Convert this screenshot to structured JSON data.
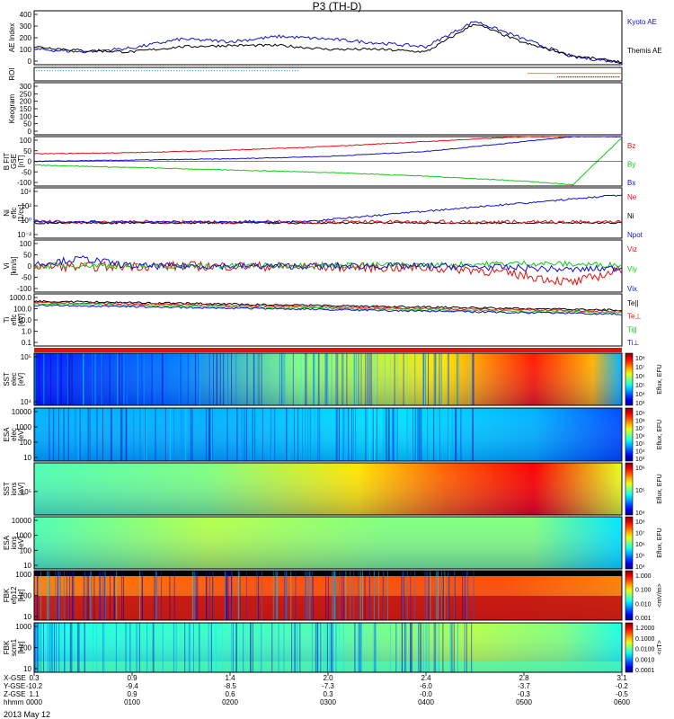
{
  "title": "P3 (TH-D)",
  "date_label": "2013 May 12",
  "colors": {
    "kyoto": "#1010c8",
    "themis": "#000000",
    "red": "#e01010",
    "green": "#10c810",
    "blue": "#1010d0",
    "black": "#000000"
  },
  "panels": [
    {
      "id": "ae",
      "ylabel": [
        "AE Index"
      ],
      "ticks": [
        "400",
        "300",
        "200",
        "100",
        "0"
      ],
      "legend": [
        {
          "text": "Kyoto AE",
          "color": "#1010c8"
        },
        {
          "text": "Themis AE",
          "color": "#000000"
        }
      ]
    },
    {
      "id": "roi",
      "ylabel": [
        "ROI"
      ],
      "ticks": [],
      "legend": []
    },
    {
      "id": "keogram",
      "ylabel": [
        "Keogram"
      ],
      "ticks": [
        "300",
        "250",
        "200",
        "150",
        "100",
        "50",
        "0"
      ],
      "legend": []
    },
    {
      "id": "bfit",
      "ylabel": [
        "B FIT",
        "GSE",
        "[nT]"
      ],
      "ticks": [
        "100",
        "50",
        "0",
        "-50",
        "-100"
      ],
      "legend": [
        {
          "text": "Bz",
          "color": "#e01010"
        },
        {
          "text": "By",
          "color": "#10c810"
        },
        {
          "text": "Bx",
          "color": "#1010d0"
        }
      ]
    },
    {
      "id": "ni",
      "ylabel": [
        "Ni",
        "eflc",
        "[1/cc]"
      ],
      "ticks": [
        "10⁴",
        "10²",
        "10⁰",
        "10⁻²"
      ],
      "legend": [
        {
          "text": "Ne",
          "color": "#e01010"
        },
        {
          "text": "Ni",
          "color": "#000000"
        },
        {
          "text": "Npot",
          "color": "#1010d0"
        }
      ]
    },
    {
      "id": "vi",
      "ylabel": [
        "Vi",
        "[km/s]"
      ],
      "ticks": [
        "100",
        "50",
        "0",
        "-50",
        "-100"
      ],
      "legend": [
        {
          "text": "Viz",
          "color": "#e01010"
        },
        {
          "text": "Viy",
          "color": "#10c810"
        },
        {
          "text": "Vix",
          "color": "#1010d0"
        }
      ]
    },
    {
      "id": "ti",
      "ylabel": [
        "Ti",
        "eflc",
        "[eV]"
      ],
      "ticks": [
        "1000.0",
        "100.0",
        "10.0",
        "1.0",
        "0.1"
      ],
      "legend": [
        {
          "text": "Te||",
          "color": "#000000"
        },
        {
          "text": "Te⊥",
          "color": "#e01010"
        },
        {
          "text": "Ti||",
          "color": "#10c810"
        },
        {
          "text": "Ti⊥",
          "color": "#1010d0"
        }
      ]
    },
    {
      "id": "sste",
      "ylabel": [
        "SST",
        "elec",
        "[eV]"
      ],
      "ticks": [
        "10⁵",
        "10⁴"
      ],
      "cbar": "Eflux, EFU",
      "cticks": [
        "10⁸",
        "10⁷",
        "10⁶",
        "10⁵",
        "10⁴",
        "10³"
      ]
    },
    {
      "id": "esae",
      "ylabel": [
        "ESA",
        "elec",
        "[eV]"
      ],
      "ticks": [
        "10000",
        "1000",
        "100",
        "10"
      ],
      "cbar": "Eflux, EFU",
      "cticks": [
        "10⁹",
        "10⁸",
        "10⁷",
        "10⁶",
        "10⁵",
        "10⁴",
        "10³"
      ]
    },
    {
      "id": "ssti",
      "ylabel": [
        "SST",
        "ions",
        "[eV]"
      ],
      "ticks": [
        "10⁵"
      ],
      "cbar": "Eflux, EFU",
      "cticks": [
        "10⁶",
        "10⁵",
        "10⁴"
      ]
    },
    {
      "id": "esai",
      "ylabel": [
        "ESA",
        "ions",
        "[eV]"
      ],
      "ticks": [
        "10000",
        "1000",
        "100",
        "10"
      ],
      "cbar": "Eflux, EFU",
      "cticks": [
        "10⁸",
        "10⁷",
        "10⁶",
        "10⁵",
        "10⁴"
      ]
    },
    {
      "id": "fbke",
      "ylabel": [
        "FBK",
        "efp12",
        "[Hz]"
      ],
      "ticks": [
        "1000",
        "100",
        "10"
      ],
      "cbar": "<mV/m>",
      "cticks": [
        "1.000",
        "0.100",
        "0.010",
        "0.001"
      ]
    },
    {
      "id": "fbkb",
      "ylabel": [
        "FBK",
        "scm1",
        "[Hz]"
      ],
      "ticks": [
        "1000",
        "100",
        "10"
      ],
      "cbar": "<nT>",
      "cticks": [
        "1.2000",
        "0.1000",
        "0.0100",
        "0.0010",
        "0.0001"
      ]
    }
  ],
  "xaxis": {
    "row_labels": [
      "X-GSE",
      "Y-GSE",
      "Z-GSE",
      "hhmm"
    ],
    "columns": [
      [
        "0.3",
        "-10.2",
        "1.1",
        "0000"
      ],
      [
        "0.9",
        "-9.4",
        "0.9",
        "0100"
      ],
      [
        "1.4",
        "-8.5",
        "0.6",
        "0200"
      ],
      [
        "2.0",
        "-7.3",
        "0.3",
        "0300"
      ],
      [
        "2.4",
        "-6.0",
        "-0.0",
        "0400"
      ],
      [
        "2.8",
        "-3.7",
        "-0.3",
        "0500"
      ],
      [
        "3.1",
        "-0.2",
        "-0.5",
        "0600"
      ]
    ]
  },
  "chart_data": [
    {
      "type": "line",
      "title": "AE Index",
      "ylabel": "AE Index",
      "x": [
        "0000",
        "0030",
        "0100",
        "0130",
        "0200",
        "0230",
        "0300",
        "0330",
        "0400",
        "0430",
        "0500",
        "0530",
        "0600"
      ],
      "series": [
        {
          "name": "Kyoto AE",
          "values": [
            120,
            100,
            130,
            200,
            180,
            220,
            200,
            170,
            140,
            340,
            200,
            60,
            20
          ]
        },
        {
          "name": "Themis AE",
          "values": [
            140,
            110,
            100,
            140,
            150,
            150,
            120,
            120,
            100,
            320,
            170,
            70,
            20
          ]
        }
      ],
      "ylim": [
        0,
        420
      ]
    },
    {
      "type": "line",
      "title": "B FIT",
      "ylabel": "GSE [nT]",
      "x": [
        "0000",
        "0100",
        "0200",
        "0300",
        "0400",
        "0500",
        "0530",
        "0600"
      ],
      "series": [
        {
          "name": "Bz",
          "values": [
            30,
            35,
            45,
            60,
            80,
            100,
            100,
            100
          ]
        },
        {
          "name": "By",
          "values": [
            -15,
            -25,
            -35,
            -45,
            -60,
            -80,
            -95,
            95
          ]
        },
        {
          "name": "Bx",
          "values": [
            0,
            5,
            10,
            20,
            40,
            80,
            100,
            100
          ]
        }
      ],
      "ylim": [
        -100,
        100
      ]
    },
    {
      "type": "line",
      "title": "Vi",
      "ylabel": "[km/s]",
      "x": [
        "0000",
        "0030",
        "0100",
        "0200",
        "0300",
        "0400",
        "0430",
        "0500",
        "0530",
        "0600"
      ],
      "series": [
        {
          "name": "Viz",
          "values": [
            0,
            -5,
            0,
            0,
            -5,
            -10,
            -20,
            -50,
            -90,
            -20
          ]
        },
        {
          "name": "Viy",
          "values": [
            0,
            5,
            0,
            0,
            5,
            5,
            10,
            15,
            10,
            5
          ]
        },
        {
          "name": "Vix",
          "values": [
            10,
            40,
            0,
            0,
            0,
            0,
            -5,
            -10,
            -20,
            -10
          ]
        }
      ],
      "ylim": [
        -140,
        140
      ]
    }
  ]
}
